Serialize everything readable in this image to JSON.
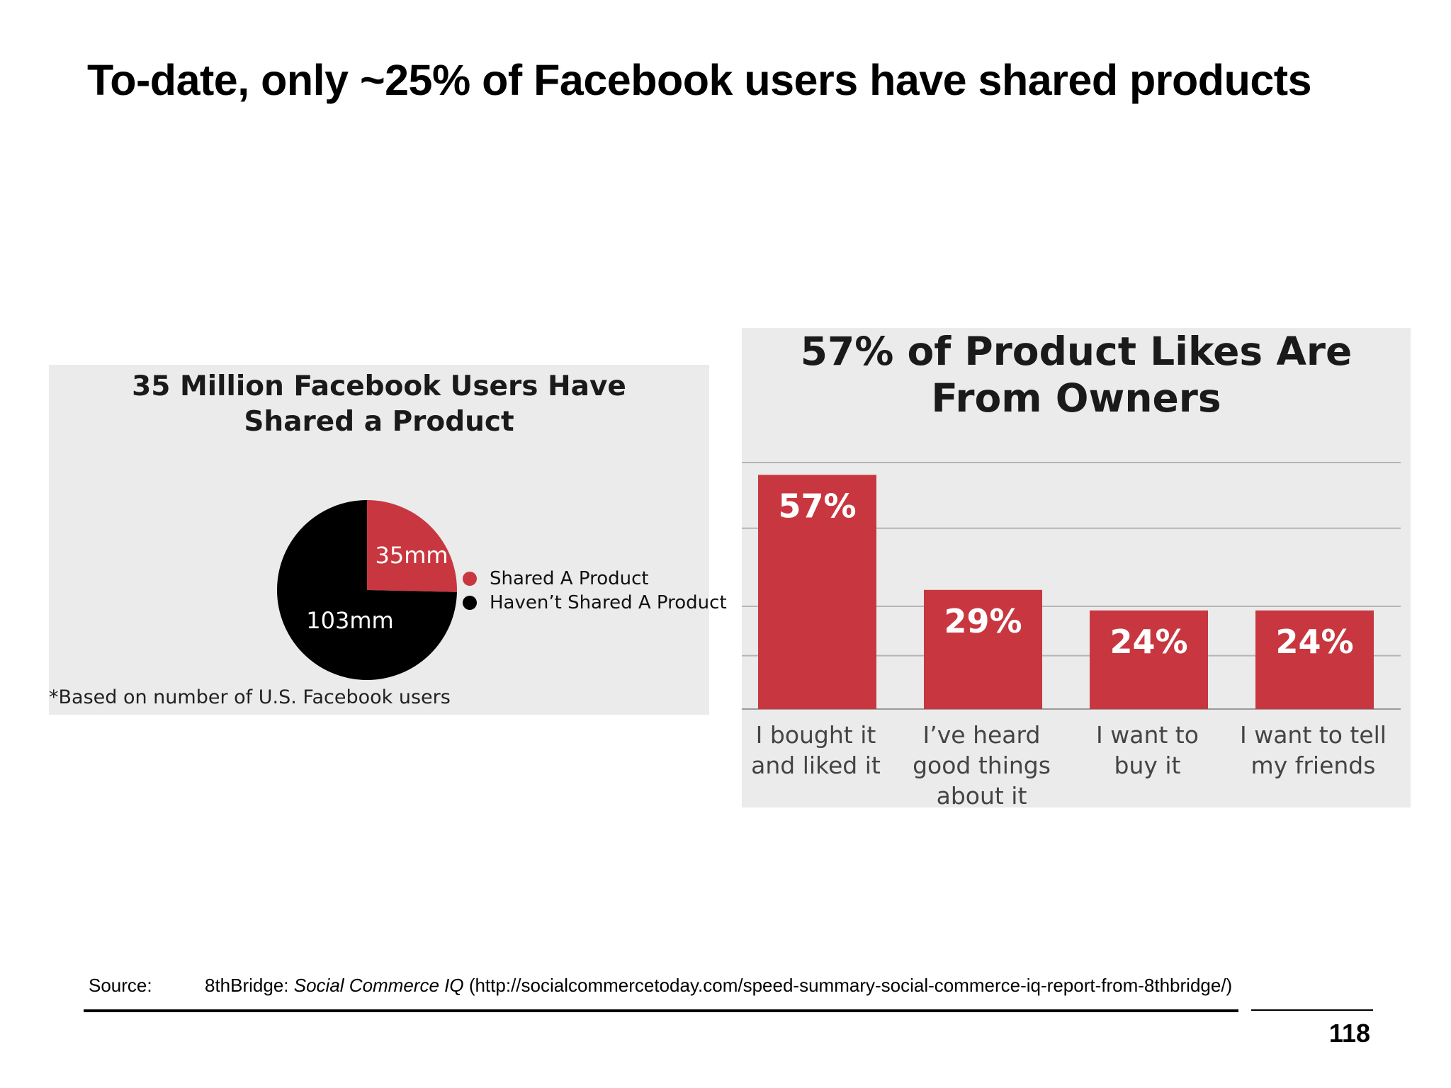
{
  "slide": {
    "title": "To-date, only ~25% of Facebook users have shared products",
    "page_number": "118"
  },
  "source": {
    "label": "Source:",
    "org": "8thBridge: ",
    "publication": "Social Commerce IQ",
    "url": " (http://socialcommercetoday.com/speed-summary-social-commerce-iq-report-from-8thbridge/)"
  },
  "colors": {
    "accent_red": "#c8373f",
    "black": "#000000",
    "panel_bg": "#ebebeb",
    "grid": "#b5b5b5"
  },
  "chart_data": [
    {
      "type": "pie",
      "title_line1": "35 Million Facebook Users Have",
      "title_line2": "Shared a Product",
      "slices": [
        {
          "label": "Shared A Product",
          "value": 35,
          "value_label": "35mm",
          "color": "#c8373f"
        },
        {
          "label": "Haven’t Shared A Product",
          "value": 103,
          "value_label": "103mm",
          "color": "#000000"
        }
      ],
      "legend_position": "right",
      "footnote": "*Based on number of U.S. Facebook users"
    },
    {
      "type": "bar",
      "title_line1": "57% of Product Likes Are",
      "title_line2": "From Owners",
      "categories": [
        [
          "I bought it",
          "and liked it"
        ],
        [
          "I’ve heard",
          "good things",
          "about it"
        ],
        [
          "I want to",
          "buy it"
        ],
        [
          "I want to tell",
          "my friends"
        ]
      ],
      "values": [
        57,
        29,
        24,
        24
      ],
      "data_labels": [
        "57%",
        "29%",
        "24%",
        "24%"
      ],
      "ylim": [
        0,
        60
      ],
      "grid": true,
      "color": "#c8373f"
    }
  ]
}
